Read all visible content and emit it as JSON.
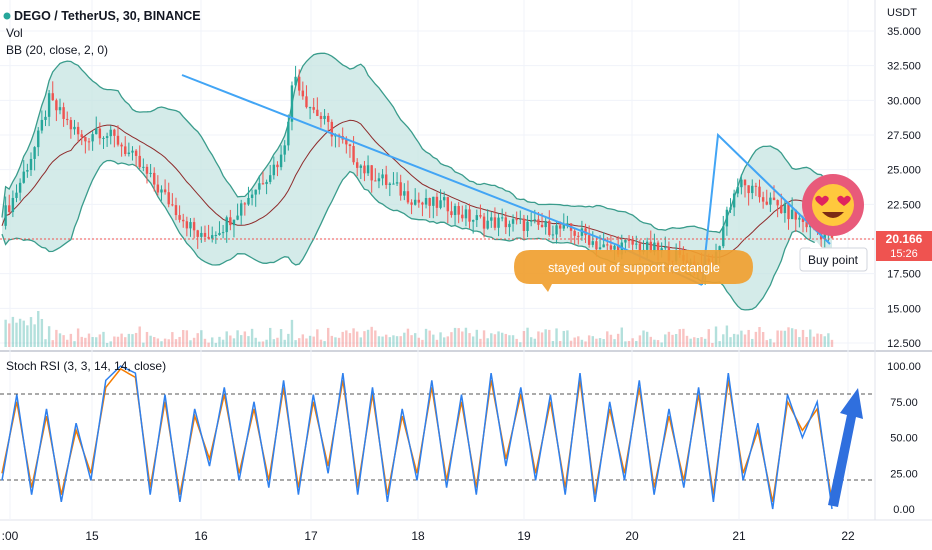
{
  "header": {
    "title": "DEGO / TetherUS, 30, BINANCE",
    "vol": "Vol",
    "bb": "BB (20, close, 2, 0)",
    "currency": "USDT"
  },
  "price_badge": {
    "value": "20.166",
    "countdown": "15:26",
    "color": "#ef5350"
  },
  "annotations": {
    "support_text": "stayed out of support rectangle",
    "buy_text": "Buy point",
    "emoji": "heart-eyes-emoji"
  },
  "stoch": {
    "title": "Stoch RSI (3, 3, 14, 14, close)",
    "upper_band": 80,
    "lower_band": 20
  },
  "colors": {
    "up": "#26a69a",
    "down": "#ef5350",
    "bb_fill": "#c2e3df",
    "bb_line": "#3a9c8c",
    "basis": "#8e2b2b",
    "trend": "#42a5f5",
    "band": "#c5a3e6",
    "k": "#2f80ed",
    "d": "#f57c00",
    "label_bg": "#f0a030",
    "arrow": "#2f6fde"
  },
  "chart_data": [
    {
      "type": "line",
      "name": "price",
      "x_ticks": [
        ":00",
        "15",
        "16",
        "17",
        "18",
        "19",
        "20",
        "21",
        "22"
      ],
      "y_ticks": [
        "35.000",
        "32.500",
        "30.000",
        "27.500",
        "25.000",
        "22.500",
        "20.000",
        "17.500",
        "15.000",
        "12.500"
      ],
      "ylim": [
        12.5,
        35
      ],
      "last_price": 20.166,
      "close": [
        21.5,
        23,
        25,
        27,
        30,
        29,
        28,
        27,
        28,
        27.5,
        27,
        26,
        25,
        24,
        23,
        22,
        21,
        20,
        20.5,
        21,
        22,
        23,
        24,
        25,
        26,
        32,
        30,
        29,
        28,
        27,
        26,
        25,
        24.5,
        24,
        23.5,
        23,
        22.5,
        22.5,
        22.5,
        22,
        21.5,
        21.3,
        21.2,
        21.2,
        21.1,
        21.0,
        20.9,
        20.8,
        20.7,
        20.5,
        20.2,
        19.5,
        19.2,
        19.5,
        19.6,
        19.3,
        19.2,
        19.0,
        18.6,
        18.2,
        18.0,
        18.5,
        22.0,
        24.0,
        23.5,
        23.0,
        22.5,
        22.0,
        21.5,
        21.0,
        20.5,
        20.2
      ]
    },
    {
      "type": "line",
      "name": "stoch-rsi",
      "y_ticks": [
        "100.00",
        "75.00",
        "50.00",
        "25.00",
        "0.00"
      ],
      "ylim": [
        0,
        100
      ],
      "k": [
        20,
        80,
        10,
        70,
        5,
        60,
        20,
        90,
        100,
        95,
        10,
        80,
        5,
        70,
        30,
        85,
        20,
        75,
        15,
        90,
        10,
        80,
        25,
        95,
        10,
        85,
        5,
        70,
        20,
        90,
        15,
        80,
        10,
        95,
        30,
        85,
        20,
        80,
        10,
        95,
        5,
        75,
        20,
        90,
        10,
        70,
        15,
        85,
        5,
        95,
        20,
        60,
        0,
        80,
        50,
        75,
        0
      ],
      "d": [
        25,
        75,
        15,
        65,
        10,
        55,
        25,
        85,
        98,
        92,
        15,
        75,
        10,
        65,
        35,
        80,
        25,
        70,
        20,
        85,
        15,
        75,
        30,
        90,
        15,
        80,
        10,
        65,
        25,
        85,
        20,
        75,
        15,
        90,
        35,
        80,
        25,
        75,
        15,
        90,
        10,
        70,
        25,
        85,
        15,
        65,
        20,
        80,
        10,
        90,
        25,
        55,
        5,
        75,
        55,
        70,
        5
      ]
    }
  ]
}
